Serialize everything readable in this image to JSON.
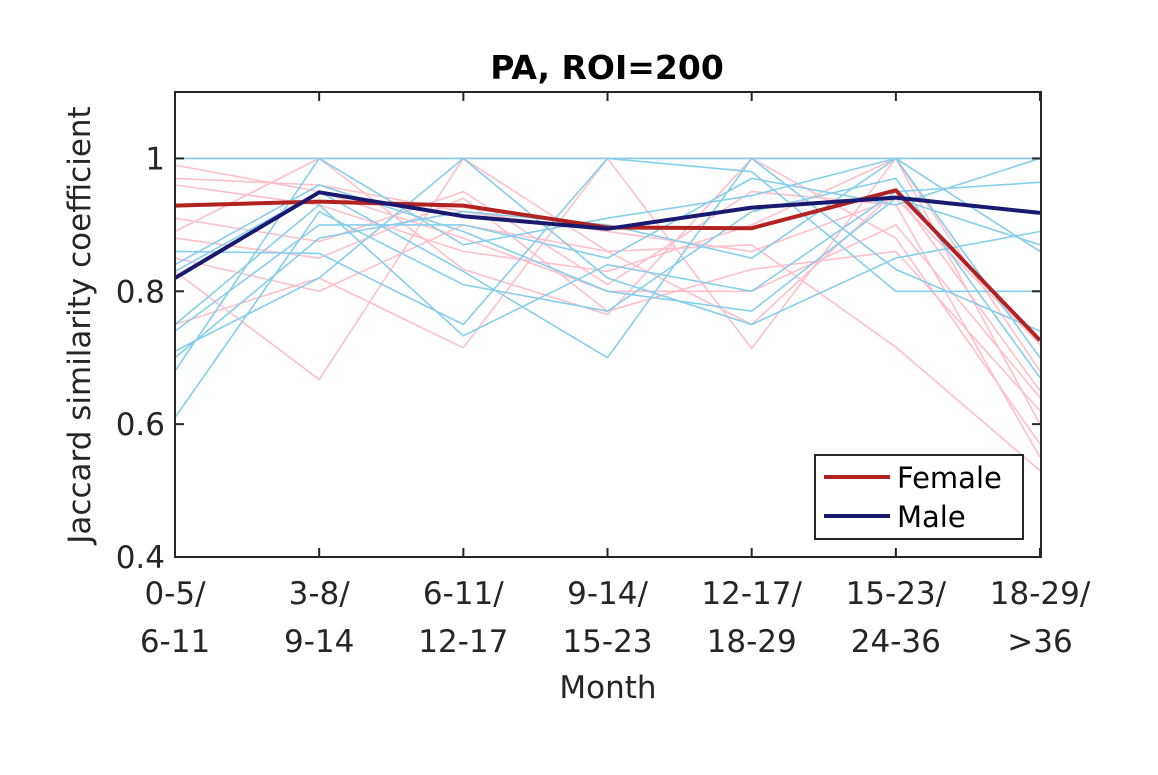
{
  "chart_data": {
    "type": "line",
    "title": "PA, ROI=200",
    "xlabel": "Month",
    "ylabel": "Jaccard similarity coefficient",
    "ylim": [
      0.4,
      1.1
    ],
    "yticks": [
      "0.4",
      "0.6",
      "0.8",
      "1"
    ],
    "categories": [
      {
        "line1": "0-5/",
        "line2": "6-11"
      },
      {
        "line1": "3-8/",
        "line2": "9-14"
      },
      {
        "line1": "6-11/",
        "line2": "12-17"
      },
      {
        "line1": "9-14/",
        "line2": "15-23"
      },
      {
        "line1": "12-17/",
        "line2": "18-29"
      },
      {
        "line1": "15-23/",
        "line2": "24-36"
      },
      {
        "line1": "18-29/",
        "line2": ">36"
      }
    ],
    "legend": {
      "position": "bottom-right"
    },
    "series": [
      {
        "name": "Female",
        "color": "#b22222",
        "values": [
          0.929,
          0.935,
          0.929,
          0.896,
          0.895,
          0.952,
          0.726
        ]
      },
      {
        "name": "Male",
        "color": "#191970",
        "values": [
          0.82,
          0.949,
          0.913,
          0.894,
          0.926,
          0.941,
          0.918
        ]
      }
    ],
    "individual_series": {
      "female_color": "#ffc0cb",
      "male_color": "#87ceeb",
      "female": [
        [
          1.0,
          1.0,
          1.0,
          1.0,
          1.0,
          1.0,
          1.0
        ],
        [
          0.97,
          0.96,
          0.92,
          0.89,
          0.86,
          0.94,
          0.72
        ],
        [
          0.96,
          0.93,
          0.86,
          0.83,
          0.9,
          1.0,
          0.6
        ],
        [
          0.91,
          0.875,
          0.95,
          0.81,
          0.95,
          0.93,
          0.55
        ],
        [
          0.88,
          0.85,
          0.94,
          0.77,
          0.833,
          0.86,
          0.62
        ],
        [
          0.85,
          0.8,
          0.9,
          0.86,
          0.75,
          0.95,
          0.65
        ],
        [
          0.83,
          0.667,
          1.0,
          0.86,
          0.87,
          0.716,
          0.53
        ],
        [
          0.75,
          0.82,
          0.715,
          1.0,
          0.714,
          1.0,
          0.68
        ],
        [
          0.89,
          1.0,
          0.833,
          0.765,
          1.0,
          0.88,
          0.57
        ],
        [
          0.99,
          0.95,
          0.88,
          0.8,
          0.8,
          0.9,
          0.64
        ]
      ],
      "male": [
        [
          1.0,
          1.0,
          1.0,
          1.0,
          1.0,
          1.0,
          1.0
        ],
        [
          0.86,
          0.857,
          0.75,
          1.0,
          0.98,
          0.8,
          0.8
        ],
        [
          0.83,
          0.95,
          0.83,
          0.7,
          1.0,
          0.833,
          0.74
        ],
        [
          0.75,
          0.93,
          0.733,
          0.84,
          0.8,
          0.95,
          0.964
        ],
        [
          0.71,
          0.82,
          1.0,
          0.82,
          0.75,
          0.85,
          0.89
        ],
        [
          0.68,
          1.0,
          0.87,
          0.91,
          0.944,
          1.0,
          0.86
        ],
        [
          0.61,
          0.92,
          0.81,
          0.77,
          0.92,
          0.97,
          0.67
        ],
        [
          0.74,
          0.9,
          0.9,
          0.85,
          0.97,
          0.93,
          1.0
        ],
        [
          0.84,
          0.96,
          0.89,
          0.8,
          0.77,
          0.94,
          0.87
        ],
        [
          0.7,
          0.88,
          0.92,
          0.9,
          0.85,
          1.0,
          0.7
        ]
      ]
    }
  }
}
